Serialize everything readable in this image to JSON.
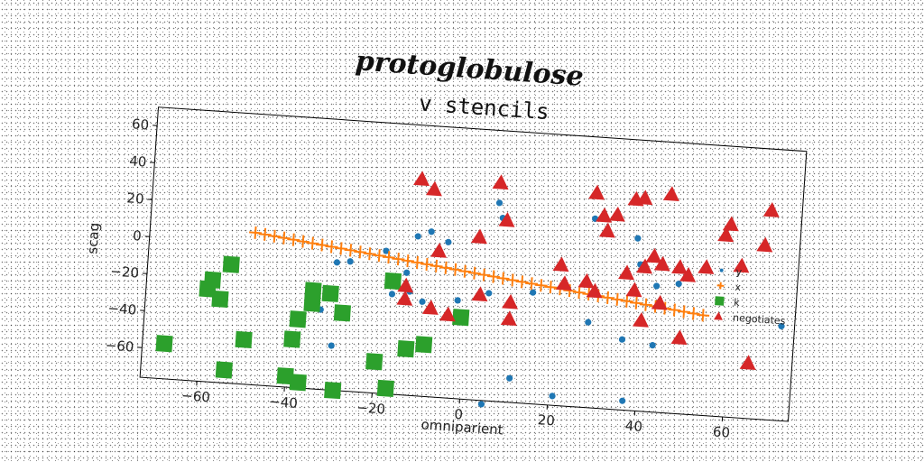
{
  "chart_data": {
    "type": "scatter",
    "title": "protoglobulose",
    "subtitle": "v stencils",
    "xlabel": "omniparient",
    "ylabel": "scag",
    "xlim": [
      -73,
      75
    ],
    "ylim": [
      -76,
      70
    ],
    "xticks": [
      -60,
      -40,
      -20,
      0,
      20,
      40,
      60
    ],
    "yticks": [
      -60,
      -40,
      -20,
      0,
      20,
      40,
      60
    ],
    "grid": false,
    "legend_position": "right",
    "series": [
      {
        "name": "y",
        "marker": "circle",
        "color": "#1f77b4",
        "points": [
          [
            -12,
            10
          ],
          [
            -9,
            13
          ],
          [
            -5,
            8
          ],
          [
            -30,
            -7
          ],
          [
            -27,
            -6
          ],
          [
            -19,
            1
          ],
          [
            -14,
            -10
          ],
          [
            -17,
            -22
          ],
          [
            -13,
            -20
          ],
          [
            -10,
            -25
          ],
          [
            -33,
            -33
          ],
          [
            -30,
            -52
          ],
          [
            -2,
            -23
          ],
          [
            6,
            31
          ],
          [
            7,
            23
          ],
          [
            5,
            -18
          ],
          [
            15,
            -16
          ],
          [
            5,
            -78
          ],
          [
            11,
            -63
          ],
          [
            21,
            -71
          ],
          [
            37,
            -71
          ],
          [
            28,
            26
          ],
          [
            38,
            17
          ],
          [
            39,
            3
          ],
          [
            43,
            -8
          ],
          [
            48,
            -6
          ],
          [
            28,
            -30
          ],
          [
            36,
            -38
          ],
          [
            43,
            -40
          ],
          [
            72,
            -25
          ]
        ]
      },
      {
        "name": "x",
        "marker": "plus",
        "color": "#ff7f0e",
        "line": {
          "x_from": -49,
          "x_to": 54,
          "y_from": 6,
          "y_to": -22,
          "count": 48
        }
      },
      {
        "name": "k",
        "marker": "square",
        "color": "#2ca02c",
        "points": [
          [
            -68,
            -57
          ],
          [
            -54,
            -12
          ],
          [
            -59,
            -26
          ],
          [
            -56,
            -31
          ],
          [
            -58,
            -21
          ],
          [
            -50,
            -52
          ],
          [
            -54,
            -69
          ],
          [
            -38,
            -39
          ],
          [
            -39,
            -50
          ],
          [
            -40,
            -70
          ],
          [
            -37,
            -73
          ],
          [
            -35,
            -23
          ],
          [
            -35,
            -30
          ],
          [
            -31,
            -24
          ],
          [
            -28,
            -34
          ],
          [
            -29,
            -76
          ],
          [
            -20,
            -59
          ],
          [
            -17,
            -73
          ],
          [
            -17,
            -15
          ],
          [
            -13,
            -51
          ],
          [
            -9,
            -48
          ],
          [
            -1,
            -32
          ]
        ]
      },
      {
        "name": "negotiates",
        "marker": "triangle",
        "color": "#d62728",
        "points": [
          [
            -12,
            41
          ],
          [
            -9,
            36
          ],
          [
            6,
            42
          ],
          [
            8,
            22
          ],
          [
            2,
            12
          ],
          [
            -7,
            3
          ],
          [
            -14,
            -17
          ],
          [
            -14,
            -24
          ],
          [
            -8,
            -28
          ],
          [
            -4,
            -31
          ],
          [
            3,
            -19
          ],
          [
            10,
            -22
          ],
          [
            10,
            -31
          ],
          [
            21,
            0
          ],
          [
            22,
            -10
          ],
          [
            27,
            -8
          ],
          [
            29,
            -13
          ],
          [
            28,
            40
          ],
          [
            30,
            28
          ],
          [
            33,
            29
          ],
          [
            31,
            20
          ],
          [
            37,
            38
          ],
          [
            39,
            39
          ],
          [
            45,
            42
          ],
          [
            40,
            2
          ],
          [
            42,
            8
          ],
          [
            44,
            4
          ],
          [
            48,
            3
          ],
          [
            50,
            -1
          ],
          [
            54,
            4
          ],
          [
            36,
            -2
          ],
          [
            38,
            -11
          ],
          [
            44,
            -17
          ],
          [
            49,
            -35
          ],
          [
            40,
            -27
          ],
          [
            58,
            22
          ],
          [
            59,
            28
          ],
          [
            62,
            6
          ],
          [
            67,
            18
          ],
          [
            68,
            37
          ],
          [
            65,
            -46
          ]
        ]
      }
    ]
  }
}
